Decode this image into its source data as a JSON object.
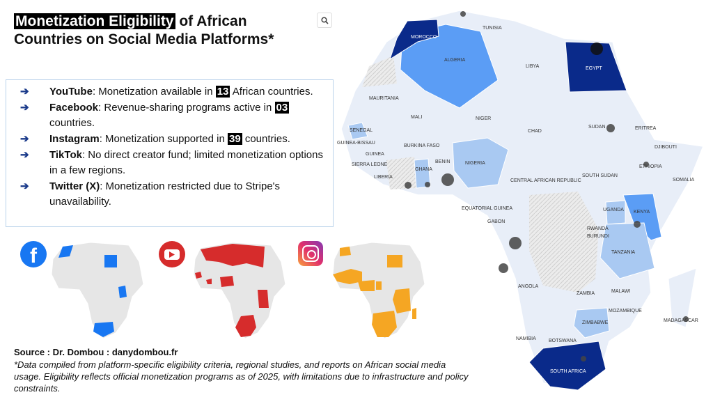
{
  "title": {
    "highlight": "Monetization Eligibility",
    "rest": " of African Countries on Social Media Platforms*"
  },
  "search_icon": "search-icon",
  "platforms": [
    {
      "name": "YouTube",
      "pre": ": Monetization available in ",
      "num": "13",
      "post": " African countries."
    },
    {
      "name": "Facebook",
      "pre": ": Revenue-sharing programs active in ",
      "num": "03",
      "post": " countries."
    },
    {
      "name": "Instagram",
      "pre": ": Monetization supported in ",
      "num": "39",
      "post": " countries."
    },
    {
      "name": "TikTok",
      "pre": ": No direct creator fund; limited monetization options in a few regions.",
      "num": "",
      "post": ""
    },
    {
      "name": "Twitter (X)",
      "pre": ": Monetization restricted due to Stripe's unavailability.",
      "num": "",
      "post": ""
    }
  ],
  "arrow_glyph": "➔",
  "icons": {
    "facebook": "facebook-icon",
    "youtube": "youtube-icon",
    "instagram": "instagram-icon"
  },
  "colors": {
    "facebook": "#1877f2",
    "youtube": "#d62c2c",
    "instagram": "#f5a623",
    "map_dark": "#0a2a8a",
    "map_mid": "#5b9df5",
    "map_light": "#a9c9f2",
    "map_base": "#e8eef8"
  },
  "source": {
    "line": "Source : Dr. Dombou : danydombou.fr",
    "note": "*Data compiled from platform-specific eligibility criteria, regional studies, and reports on African social media usage. Eligibility reflects official monetization programs as of 2025, with limitations due to infrastructure and policy constraints."
  },
  "map_labels": [
    "TUNISIA",
    "MOROCCO",
    "ALGERIA",
    "LIBYA",
    "EGYPT",
    "MAURITANIA",
    "MALI",
    "NIGER",
    "CHAD",
    "SUDAN",
    "ERITREA",
    "SENEGAL",
    "GUINEA-BISSAU",
    "GUINEA",
    "SIERRA LEONE",
    "LIBERIA",
    "BURKINA FASO",
    "GHANA",
    "BENIN",
    "NIGERIA",
    "DJIBOUTI",
    "ETHIOPIA",
    "SOUTH SUDAN",
    "SOMALIA",
    "CENTRAL AFRICAN REPUBLIC",
    "EQUATORIAL GUINEA",
    "GABON",
    "UGANDA",
    "KENYA",
    "RWANDA",
    "BURUNDI",
    "TANZANIA",
    "ANGOLA",
    "ZAMBIA",
    "MALAWI",
    "MOZAMBIQUE",
    "ZIMBABWE",
    "NAMIBIA",
    "BOTSWANA",
    "MADAGASCAR",
    "SOUTH AFRICA"
  ]
}
